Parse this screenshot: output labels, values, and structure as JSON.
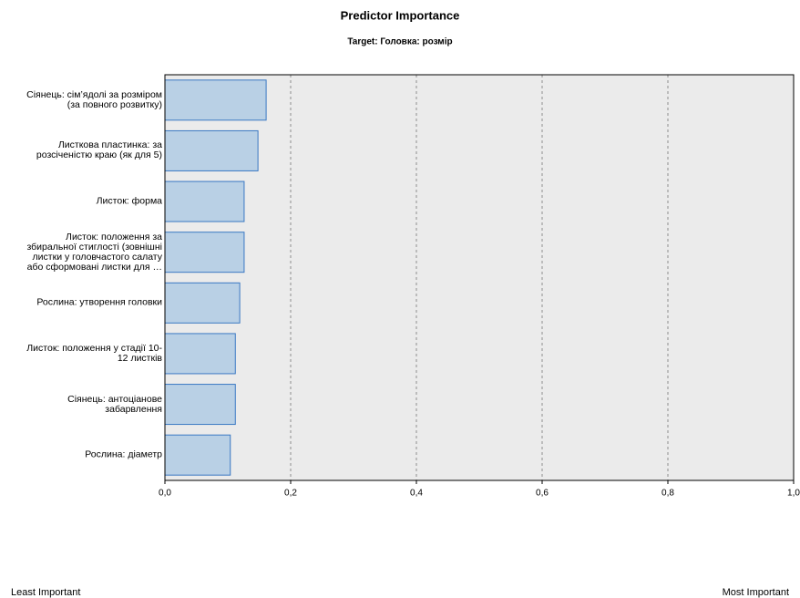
{
  "chart_data": {
    "type": "bar",
    "orientation": "horizontal",
    "title": "Predictor Importance",
    "subtitle": "Target: Головка: розмір",
    "categories": [
      "Сіянець: сім’ядолі за розміром\n(за повного розвитку)",
      "Листкова пластинка: за\nрозсіченістю краю (як для 5)",
      "Листок: форма",
      "Листок: положення за\nзбиральної стиглості (зовнішні\nлистки у головчастого салату\nабо сформовані листки для …",
      "Рослина: утворення головки",
      "Листок: положення у стадії 10-\n12 листків",
      "Сіянець: антоціанове\nзабарвлення",
      "Рослина: діаметр"
    ],
    "values": [
      0.161,
      0.148,
      0.126,
      0.126,
      0.119,
      0.112,
      0.112,
      0.104
    ],
    "color": "#b9d0e5",
    "edge_color": "#3a78c3",
    "xlim": [
      0,
      1
    ],
    "xticks": [
      {
        "value": 0,
        "label": "0,0"
      },
      {
        "value": 0.2,
        "label": "0,2"
      },
      {
        "value": 0.4,
        "label": "0,4"
      },
      {
        "value": 0.6,
        "label": "0,6"
      },
      {
        "value": 0.8,
        "label": "0,8"
      },
      {
        "value": 1,
        "label": "1,0"
      }
    ],
    "grid": true,
    "x_start_note": "Least Important",
    "x_end_note": "Most Important"
  }
}
